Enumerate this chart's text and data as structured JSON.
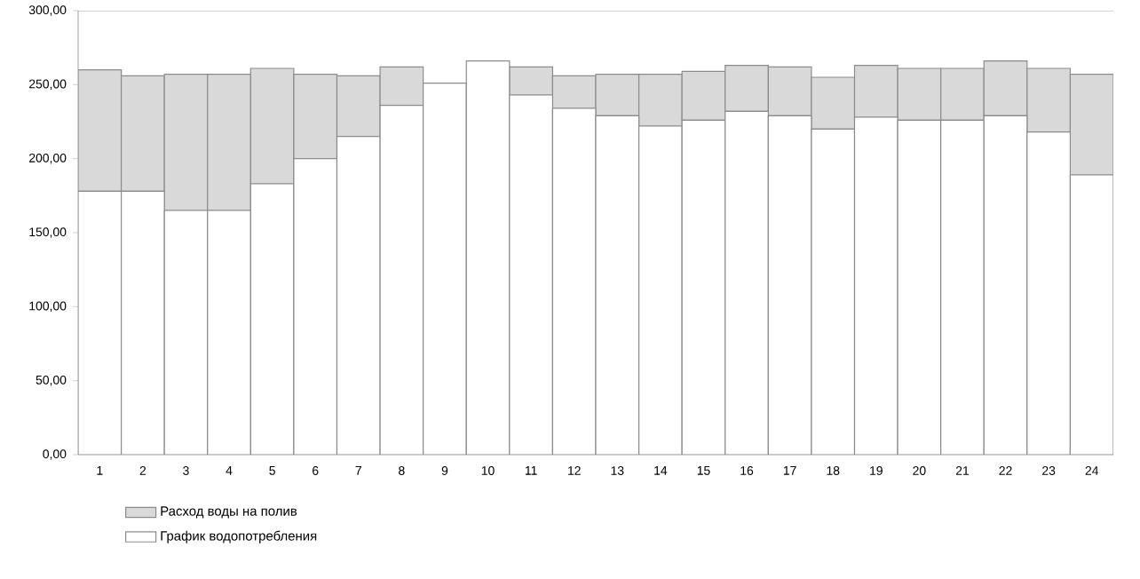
{
  "chart_data": {
    "type": "bar",
    "stacked": true,
    "categories": [
      "1",
      "2",
      "3",
      "4",
      "5",
      "6",
      "7",
      "8",
      "9",
      "10",
      "11",
      "12",
      "13",
      "14",
      "15",
      "16",
      "17",
      "18",
      "19",
      "20",
      "21",
      "22",
      "23",
      "24"
    ],
    "series": [
      {
        "name": "График водопотребления",
        "color": "#ffffff",
        "values": [
          178,
          178,
          165,
          165,
          183,
          200,
          215,
          236,
          251,
          266,
          243,
          234,
          229,
          222,
          226,
          232,
          229,
          220,
          228,
          226,
          226,
          229,
          218,
          189
        ]
      },
      {
        "name": "Расход воды на полив",
        "color": "#d9d9d9",
        "values": [
          82,
          78,
          92,
          92,
          78,
          57,
          41,
          26,
          0,
          0,
          19,
          22,
          28,
          35,
          33,
          31,
          33,
          35,
          35,
          35,
          35,
          37,
          43,
          68
        ]
      }
    ],
    "ylim": [
      0,
      300
    ],
    "yticks": [
      {
        "value": 0,
        "label": "0,00"
      },
      {
        "value": 50,
        "label": "50,00"
      },
      {
        "value": 100,
        "label": "100,00"
      },
      {
        "value": 150,
        "label": "150,00"
      },
      {
        "value": 200,
        "label": "200,00"
      },
      {
        "value": 250,
        "label": "250,00"
      },
      {
        "value": 300,
        "label": "300,00"
      }
    ],
    "grid": false,
    "legend": "bottom left"
  }
}
